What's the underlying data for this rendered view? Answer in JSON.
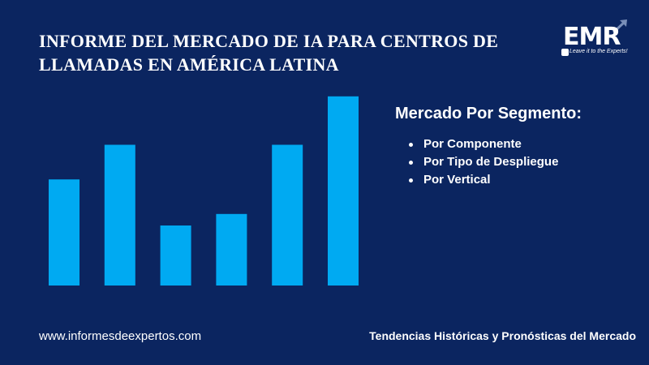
{
  "title": {
    "line1": "INFORME DEL MERCADO DE IA PARA CENTROS DE",
    "line2": "LLAMADAS EN AMÉRICA LATINA"
  },
  "logo": {
    "text": "EMR",
    "tagline": "Leave it to the Experts!"
  },
  "segments": {
    "heading": "Mercado Por Segmento:",
    "items": [
      "Por Componente",
      "Por Tipo de Despliegue",
      "Por Vertical"
    ]
  },
  "footer": {
    "website": "www.informesdeexpertos.com",
    "tagline": "Tendencias Históricas y Pronósticas del Mercado"
  },
  "colors": {
    "background": "#0b2560",
    "bar": "#00aaf2"
  },
  "chart_data": {
    "type": "bar",
    "title": "",
    "xlabel": "",
    "ylabel": "",
    "categories": [
      "",
      "",
      "",
      "",
      "",
      ""
    ],
    "values": [
      46,
      61,
      26,
      31,
      61,
      82
    ],
    "ylim": [
      0,
      90
    ],
    "grid": false
  }
}
